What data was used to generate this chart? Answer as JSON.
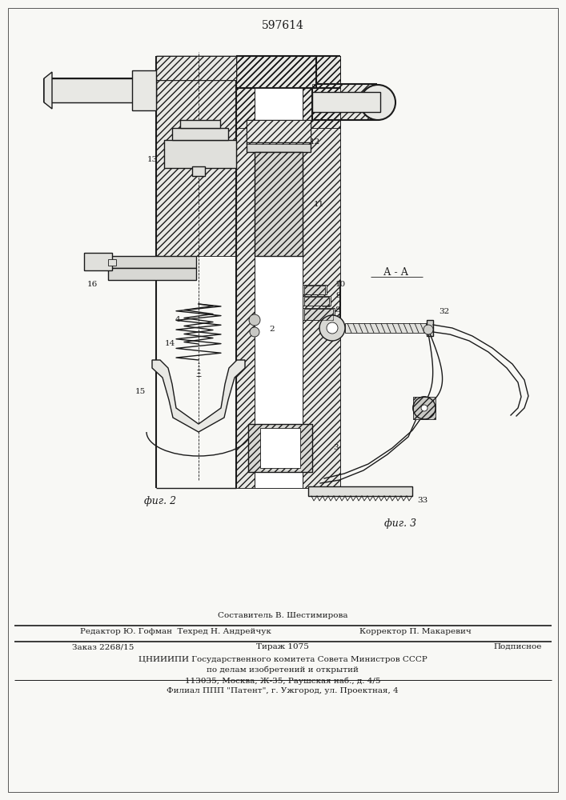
{
  "title": "597614",
  "fig_width": 7.07,
  "fig_height": 10.0,
  "bg_color": "#f8f8f5",
  "lc": "#1a1a1a",
  "fig2_label": "фиг. 2",
  "fig3_label": "фиг. 3",
  "section_label": "А - А",
  "footer": [
    [
      "center",
      207,
      "Составитель В. Шестимирова",
      7.5
    ],
    [
      "left",
      18,
      "Редактор Ю. Гофман  Техред Н. Андрейчук",
      7.5
    ],
    [
      "right",
      689,
      "Корректор П. Макаревич",
      7.5
    ],
    [
      "left",
      18,
      "Заказ 2268/15",
      7.5
    ],
    [
      "center",
      207,
      "Тираж 1075",
      7.5
    ],
    [
      "right",
      689,
      "Подписное",
      7.5
    ],
    [
      "center",
      353,
      "ЦНИИИПИ Государственного комитета Совета Министров СССР",
      7.5
    ],
    [
      "center",
      353,
      "по делам изобретений и открытий",
      7.5
    ],
    [
      "center",
      353,
      "113035, Москва, Ж-35, Раушская наб., д. 4/5",
      7.5
    ],
    [
      "center",
      353,
      "Филиал ППП \"Патент\", г. Ужгород, ул. Проектная, 4",
      7.5
    ]
  ]
}
